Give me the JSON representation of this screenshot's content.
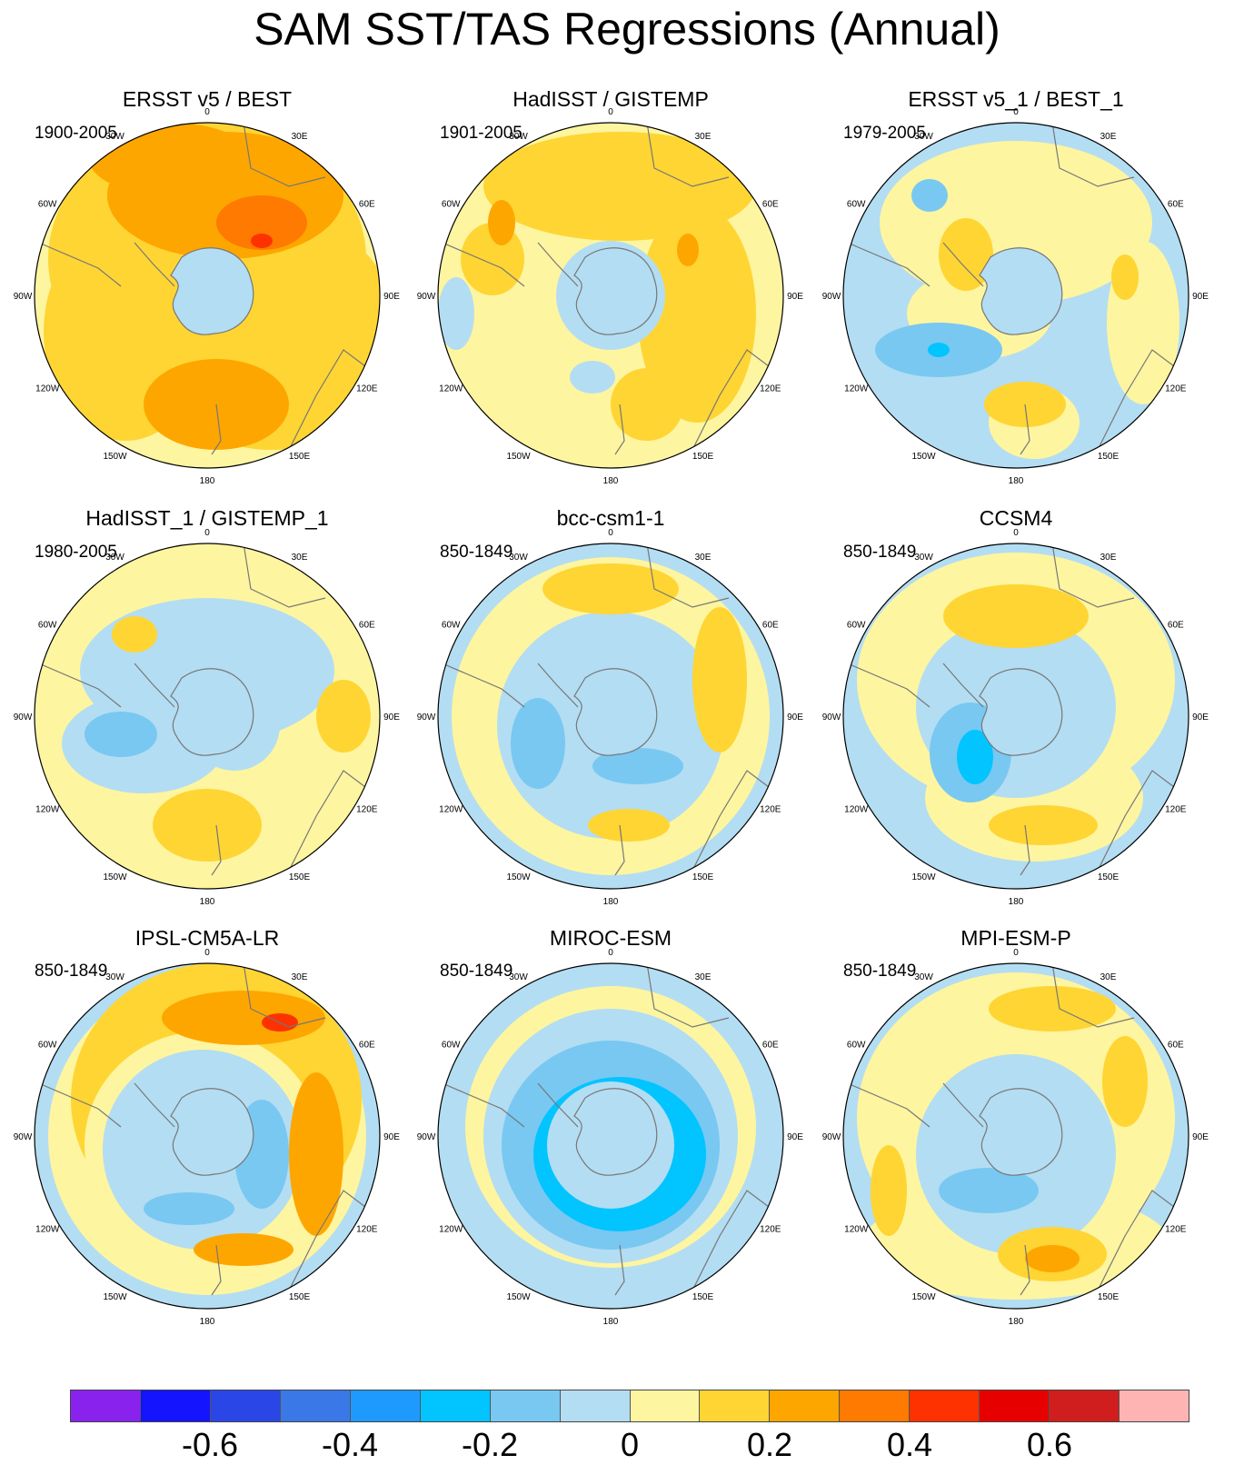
{
  "title": "SAM SST/TAS Regressions (Annual)",
  "panels": [
    {
      "title": "ERSST v5 / BEST",
      "period": "1900-2005",
      "style": "obsWarm"
    },
    {
      "title": "HadISST / GISTEMP",
      "period": "1901-2005",
      "style": "obsWarm2"
    },
    {
      "title": "ERSST v5_1 / BEST_1",
      "period": "1979-2005",
      "style": "obsMixed"
    },
    {
      "title": "HadISST_1 / GISTEMP_1",
      "period": "1980-2005",
      "style": "obsMixed2"
    },
    {
      "title": "bcc-csm1-1",
      "period": "850-1849",
      "style": "model"
    },
    {
      "title": "CCSM4",
      "period": "850-1849",
      "style": "model2"
    },
    {
      "title": "IPSL-CM5A-LR",
      "period": "850-1849",
      "style": "modelStrong"
    },
    {
      "title": "MIROC-ESM",
      "period": "850-1849",
      "style": "modelCold"
    },
    {
      "title": "MPI-ESM-P",
      "period": "850-1849",
      "style": "model3"
    }
  ],
  "longitude_labels": [
    "0",
    "30E",
    "60E",
    "90E",
    "120E",
    "150E",
    "180",
    "150W",
    "120W",
    "90W",
    "60W",
    "30W"
  ],
  "colorbar": {
    "colors": [
      "#8a22ee",
      "#1414ff",
      "#2a46e6",
      "#3a78e8",
      "#1e9aff",
      "#02c4ff",
      "#78c8f2",
      "#b3ddf2",
      "#fef5a0",
      "#fed533",
      "#fea600",
      "#fe7a00",
      "#fe3200",
      "#e60000",
      "#d01e1e",
      "#ffb4b4"
    ],
    "tick_labels": [
      "-0.6",
      "-0.4",
      "-0.2",
      "0",
      "0.2",
      "0.4",
      "0.6"
    ],
    "tick_values": [
      -0.6,
      -0.4,
      -0.2,
      0,
      0.2,
      0.4,
      0.6
    ],
    "range": [
      -0.8,
      0.8
    ]
  }
}
